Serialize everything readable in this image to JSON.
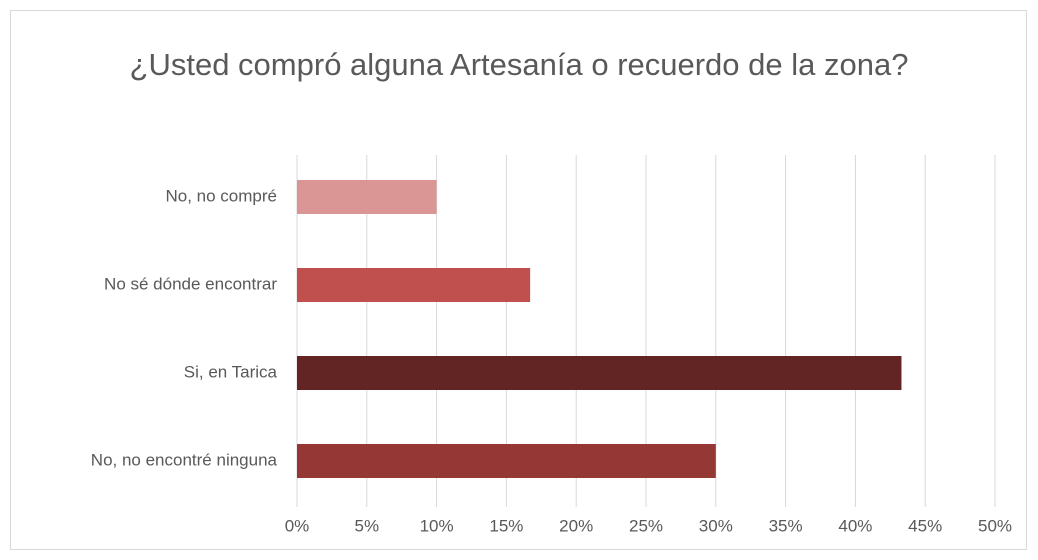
{
  "chart_data": {
    "type": "barh",
    "title": "¿Usted compró alguna Artesanía o recuerdo de la zona?",
    "categories": [
      "No, no compré",
      "No sé dónde encontrar",
      "Si, en Tarica",
      "No, no encontré ninguna"
    ],
    "values": [
      10,
      16.7,
      43.3,
      30
    ],
    "colors": [
      "#d99694",
      "#c0504d",
      "#632523",
      "#953735"
    ],
    "xlim": [
      0,
      50
    ],
    "xticks": [
      {
        "value": 0,
        "label": "0%"
      },
      {
        "value": 5,
        "label": "5%"
      },
      {
        "value": 10,
        "label": "10%"
      },
      {
        "value": 15,
        "label": "15%"
      },
      {
        "value": 20,
        "label": "20%"
      },
      {
        "value": 25,
        "label": "25%"
      },
      {
        "value": 30,
        "label": "30%"
      },
      {
        "value": 35,
        "label": "35%"
      },
      {
        "value": 40,
        "label": "40%"
      },
      {
        "value": 45,
        "label": "45%"
      },
      {
        "value": 50,
        "label": "50%"
      }
    ],
    "grid": true
  }
}
